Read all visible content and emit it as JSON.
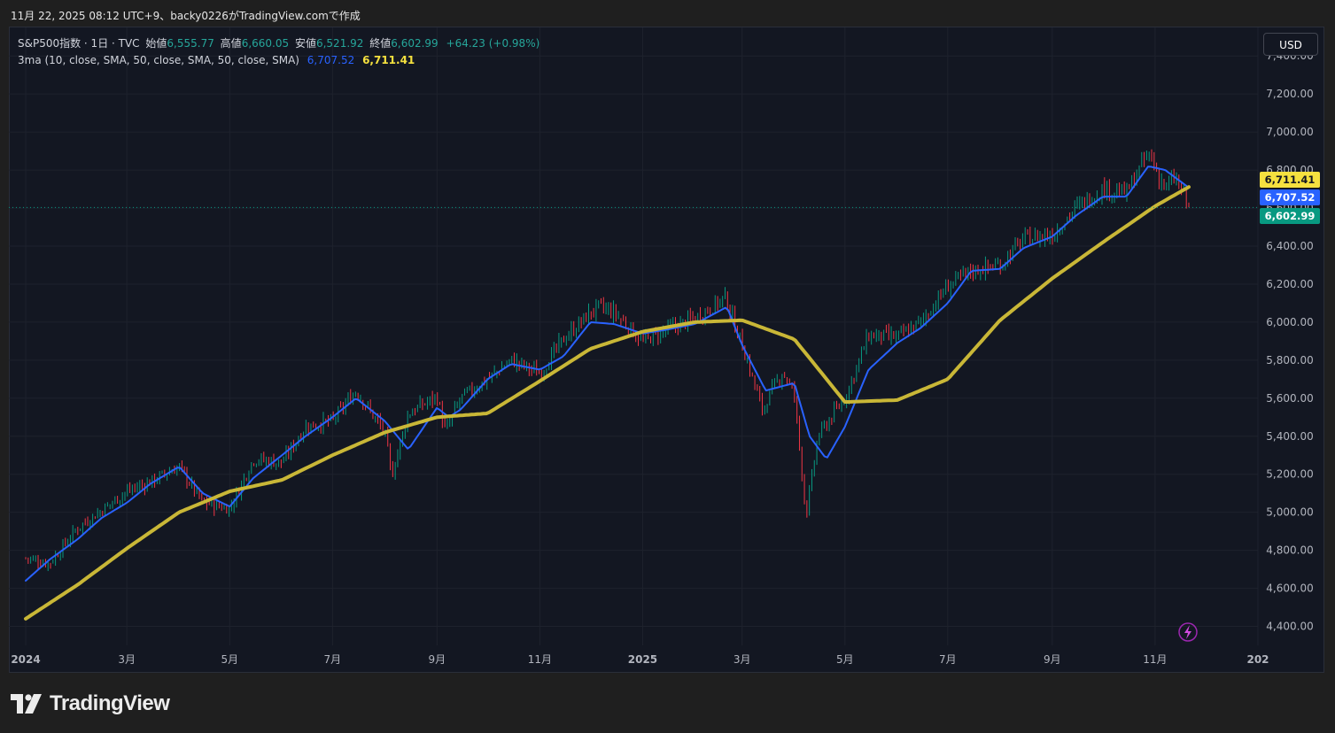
{
  "header": {
    "text": "11月 22, 2025 08:12 UTC+9、backy0226がTradingView.comで作成"
  },
  "legend": {
    "symbol": "S&P500指数 · 1日 · TVC",
    "open_label": "始値",
    "open": "6,555.77",
    "high_label": "高値",
    "high": "6,660.05",
    "low_label": "安値",
    "low": "6,521.92",
    "close_label": "終値",
    "close": "6,602.99",
    "change": "+64.23 (+0.98%)",
    "indicator": "3ma (10, close, SMA, 50, close, SMA, 50, close, SMA)",
    "ma10_value": "6,707.52",
    "ma50_value": "6,711.41"
  },
  "currency_button": "USD",
  "price_labels": {
    "ma50": "6,711.41",
    "ma10": "6,707.52",
    "last": "6,602.99"
  },
  "brand": {
    "name": "TradingView"
  },
  "colors": {
    "up": "#089981",
    "down": "#f23645",
    "ma10": "#2962ff",
    "ma50": "#c9b737",
    "last_line": "#089981",
    "grid": "#1e222d"
  },
  "chart_data": {
    "type": "line",
    "ylim": [
      4300,
      7550
    ],
    "y_ticks": [
      "7,400.00",
      "7,200.00",
      "7,000.00",
      "6,800.00",
      "6,600.00",
      "6,400.00",
      "6,200.00",
      "6,000.00",
      "5,800.00",
      "5,600.00",
      "5,400.00",
      "5,200.00",
      "5,000.00",
      "4,800.00",
      "4,600.00",
      "4,400.00"
    ],
    "x_ticks": [
      "2024",
      "3月",
      "5月",
      "7月",
      "9月",
      "11月",
      "2025",
      "3月",
      "5月",
      "7月",
      "9月",
      "11月",
      "202"
    ],
    "last_price": 6602.99,
    "price_series": {
      "name": "S&P500指数",
      "x": [
        "2024-01-01",
        "2024-01-15",
        "2024-02-01",
        "2024-02-15",
        "2024-03-01",
        "2024-03-15",
        "2024-04-01",
        "2024-04-15",
        "2024-05-01",
        "2024-05-15",
        "2024-06-01",
        "2024-06-15",
        "2024-07-01",
        "2024-07-15",
        "2024-08-01",
        "2024-08-05",
        "2024-08-15",
        "2024-09-01",
        "2024-09-06",
        "2024-09-15",
        "2024-10-01",
        "2024-10-15",
        "2024-11-01",
        "2024-11-15",
        "2024-12-01",
        "2024-12-06",
        "2024-12-15",
        "2025-01-01",
        "2025-01-15",
        "2025-02-01",
        "2025-02-19",
        "2025-03-01",
        "2025-03-13",
        "2025-03-25",
        "2025-04-01",
        "2025-04-08",
        "2025-04-15",
        "2025-05-01",
        "2025-05-15",
        "2025-06-01",
        "2025-06-15",
        "2025-07-01",
        "2025-07-15",
        "2025-08-01",
        "2025-08-15",
        "2025-09-01",
        "2025-09-15",
        "2025-10-01",
        "2025-10-15",
        "2025-10-28",
        "2025-11-07",
        "2025-11-13",
        "2025-11-21"
      ],
      "close": [
        4760,
        4730,
        4920,
        5010,
        5110,
        5160,
        5240,
        5050,
        5020,
        5280,
        5260,
        5450,
        5480,
        5640,
        5420,
        5190,
        5520,
        5610,
        5420,
        5600,
        5700,
        5800,
        5730,
        5910,
        6050,
        6080,
        6050,
        5900,
        5960,
        6020,
        6130,
        5880,
        5540,
        5740,
        5620,
        4980,
        5400,
        5600,
        5930,
        5920,
        6000,
        6190,
        6270,
        6300,
        6440,
        6460,
        6600,
        6700,
        6680,
        6890,
        6700,
        6760,
        6603
      ]
    },
    "series": [
      {
        "name": "ma10",
        "x": [
          "2024-01-01",
          "2024-01-15",
          "2024-02-01",
          "2024-02-15",
          "2024-03-01",
          "2024-03-15",
          "2024-04-01",
          "2024-04-15",
          "2024-05-01",
          "2024-05-15",
          "2024-06-01",
          "2024-06-15",
          "2024-07-01",
          "2024-07-15",
          "2024-08-01",
          "2024-08-15",
          "2024-09-01",
          "2024-09-08",
          "2024-09-15",
          "2024-10-01",
          "2024-10-15",
          "2024-11-01",
          "2024-11-15",
          "2024-12-01",
          "2024-12-15",
          "2025-01-01",
          "2025-01-15",
          "2025-02-01",
          "2025-02-20",
          "2025-03-01",
          "2025-03-15",
          "2025-04-01",
          "2025-04-10",
          "2025-04-20",
          "2025-05-01",
          "2025-05-15",
          "2025-06-01",
          "2025-06-15",
          "2025-07-01",
          "2025-07-15",
          "2025-08-01",
          "2025-08-15",
          "2025-09-01",
          "2025-09-15",
          "2025-10-01",
          "2025-10-15",
          "2025-10-28",
          "2025-11-07",
          "2025-11-21"
        ],
        "values": [
          4640,
          4750,
          4860,
          4970,
          5050,
          5150,
          5240,
          5100,
          5030,
          5180,
          5300,
          5400,
          5500,
          5600,
          5480,
          5330,
          5550,
          5500,
          5540,
          5700,
          5780,
          5750,
          5820,
          6000,
          5990,
          5940,
          5960,
          5990,
          6080,
          5880,
          5640,
          5680,
          5400,
          5280,
          5450,
          5750,
          5890,
          5970,
          6100,
          6270,
          6280,
          6390,
          6450,
          6560,
          6660,
          6660,
          6820,
          6800,
          6707
        ]
      },
      {
        "name": "ma50",
        "x": [
          "2024-01-01",
          "2024-02-01",
          "2024-03-01",
          "2024-04-01",
          "2024-05-01",
          "2024-06-01",
          "2024-07-01",
          "2024-08-01",
          "2024-09-01",
          "2024-10-01",
          "2024-11-01",
          "2024-12-01",
          "2025-01-01",
          "2025-02-01",
          "2025-03-01",
          "2025-04-01",
          "2025-05-01",
          "2025-06-01",
          "2025-07-01",
          "2025-08-01",
          "2025-09-01",
          "2025-10-01",
          "2025-11-01",
          "2025-11-21"
        ],
        "values": [
          4440,
          4620,
          4810,
          5000,
          5110,
          5170,
          5300,
          5420,
          5500,
          5520,
          5690,
          5860,
          5950,
          6000,
          6010,
          5910,
          5580,
          5590,
          5700,
          6010,
          6230,
          6420,
          6610,
          6711
        ]
      }
    ]
  }
}
